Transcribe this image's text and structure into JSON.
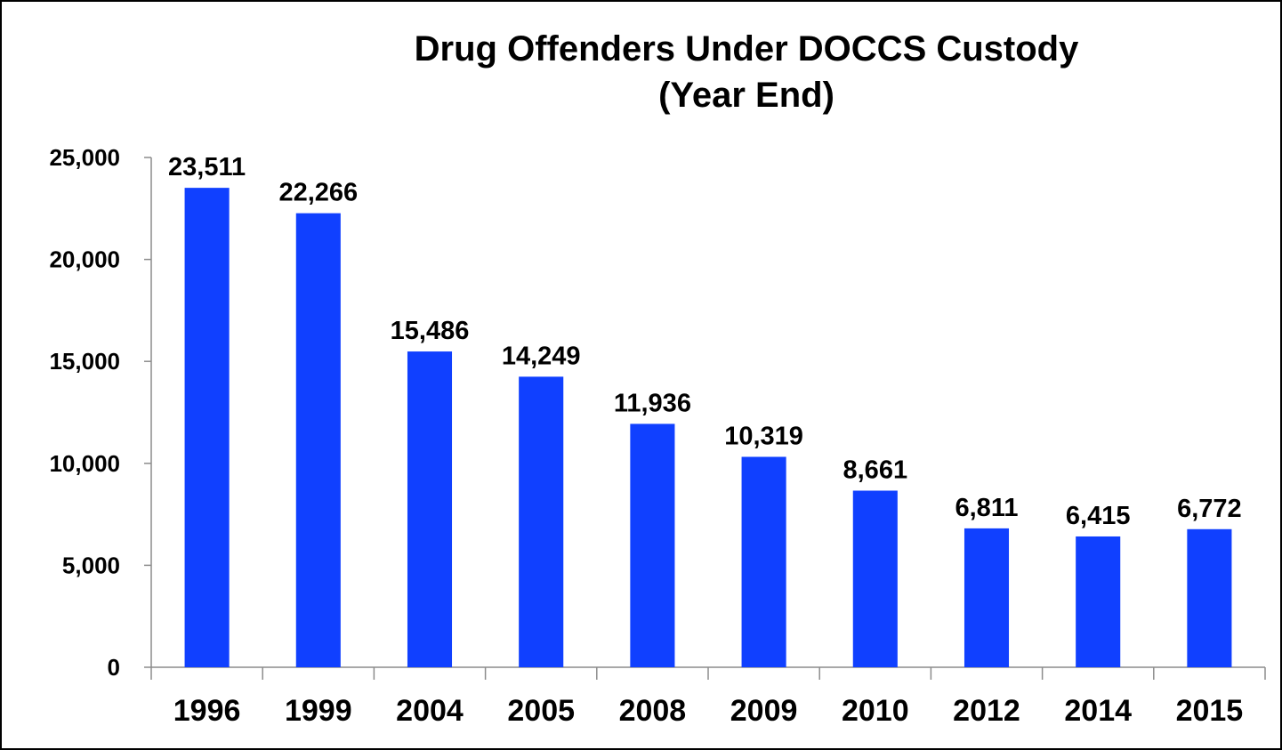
{
  "chart_data": {
    "type": "bar",
    "title": "Drug Offenders Under DOCCS Custody",
    "subtitle": "(Year End)",
    "categories": [
      "1996",
      "1999",
      "2004",
      "2005",
      "2008",
      "2009",
      "2010",
      "2012",
      "2014",
      "2015"
    ],
    "values": [
      23511,
      22266,
      15486,
      14249,
      11936,
      10319,
      8661,
      6811,
      6415,
      6772
    ],
    "data_labels": [
      "23,511",
      "22,266",
      "15,486",
      "14,249",
      "11,936",
      "10,319",
      "8,661",
      "6,811",
      "6,415",
      "6,772"
    ],
    "y_ticks": [
      0,
      5000,
      10000,
      15000,
      20000,
      25000
    ],
    "y_tick_labels": [
      "0",
      "5,000",
      "10,000",
      "15,000",
      "20,000",
      "25,000"
    ],
    "ylim": [
      0,
      25000
    ],
    "xlabel": "",
    "ylabel": "",
    "grid": false,
    "legend": "none",
    "bar_color": "#1040FF"
  }
}
